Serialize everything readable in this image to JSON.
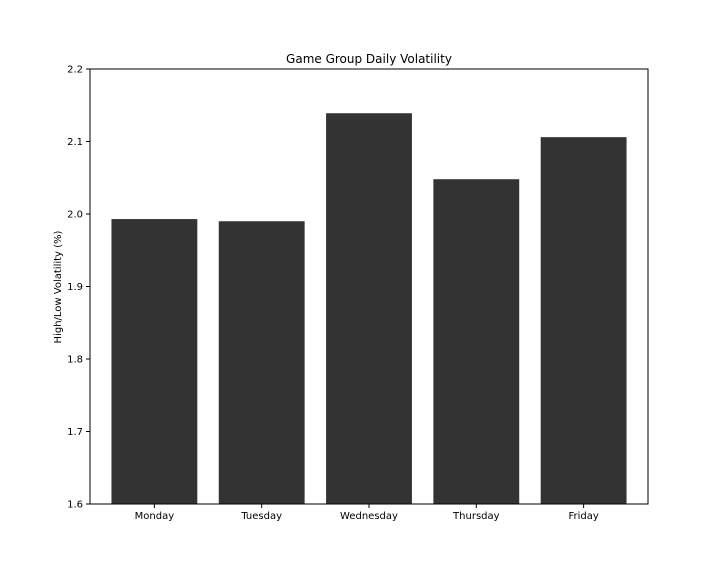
{
  "chart_data": {
    "type": "bar",
    "title": "Game Group Daily Volatility",
    "xlabel": "",
    "ylabel": "High/Low Volatility (%)",
    "categories": [
      "Monday",
      "Tuesday",
      "Wednesday",
      "Thursday",
      "Friday"
    ],
    "values": [
      1.993,
      1.99,
      2.139,
      2.048,
      2.106
    ],
    "ylim": [
      1.6,
      2.2
    ],
    "yticks": [
      "1.6",
      "1.7",
      "1.8",
      "1.9",
      "2.0",
      "2.1",
      "2.2"
    ],
    "grid": false,
    "legend": "none",
    "bar_color": "#333333"
  }
}
